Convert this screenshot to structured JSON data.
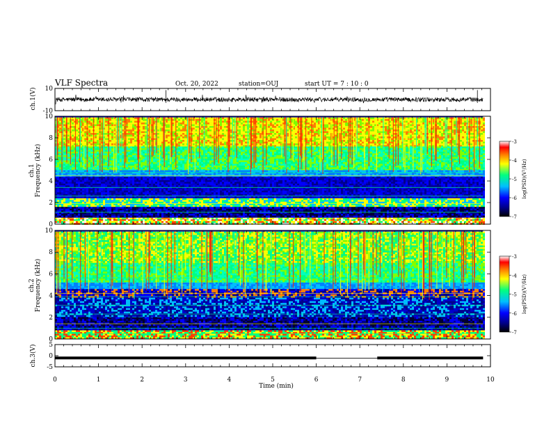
{
  "header": {
    "title": "VLF Spectra",
    "date": "Oct. 20, 2022",
    "station": "station=OUJ",
    "start": "start  UT  =   7 : 10 : 0"
  },
  "colors": {
    "spectrogram_scale": [
      "#000000",
      "#00008b",
      "#0000ff",
      "#00bfff",
      "#00ff80",
      "#ffff00",
      "#ff8000",
      "#ff0000",
      "#ffffff"
    ],
    "trace": "#000000"
  },
  "chart_data": [
    {
      "type": "line",
      "name": "ch1-waveform",
      "ylabel": "ch.1(V)",
      "ylim": [
        -10,
        10
      ],
      "y_ticks": [
        "10",
        "-10"
      ],
      "x_range": [
        0,
        10
      ],
      "data_x_end": 9.83,
      "baseline": 0,
      "amplitude": 2
    },
    {
      "type": "heatmap",
      "name": "ch1-spectrogram",
      "ylabel": "ch.1\nFrequency (kHz)",
      "ylim": [
        0,
        10
      ],
      "y_ticks": [
        "0",
        "2",
        "4",
        "6",
        "8",
        "10"
      ],
      "x_range": [
        0,
        10
      ],
      "colorbar": {
        "label": "log(PSD)(V²/Hz)",
        "range": [
          -7,
          -3
        ],
        "ticks": [
          "-3",
          "-4",
          "-5",
          "-6",
          "-7"
        ]
      }
    },
    {
      "type": "heatmap",
      "name": "ch2-spectrogram",
      "ylabel": "ch.2\nFrequency (kHz)",
      "ylim": [
        0,
        10
      ],
      "y_ticks": [
        "0",
        "2",
        "4",
        "6",
        "8",
        "10"
      ],
      "x_range": [
        0,
        10
      ],
      "colorbar": {
        "label": "log(PSD)(V²/Hz)",
        "range": [
          -7,
          -3
        ],
        "ticks": [
          "-3",
          "-4",
          "-5",
          "-6",
          "-7"
        ]
      }
    },
    {
      "type": "line",
      "name": "ch3-voltage",
      "ylabel": "ch.3(V)",
      "ylim": [
        -5,
        5
      ],
      "y_ticks": [
        "5",
        "0",
        "-5"
      ],
      "x_range": [
        0,
        10
      ],
      "segments": [
        [
          0,
          6.0,
          -1
        ],
        [
          6.0,
          7.4,
          -1.15
        ],
        [
          7.4,
          9.83,
          -1
        ]
      ]
    }
  ],
  "x_axis": {
    "label": "Time  (min)",
    "ticks": [
      "0",
      "1",
      "2",
      "3",
      "4",
      "5",
      "6",
      "7",
      "8",
      "9",
      "10"
    ],
    "range": [
      0,
      10
    ]
  }
}
